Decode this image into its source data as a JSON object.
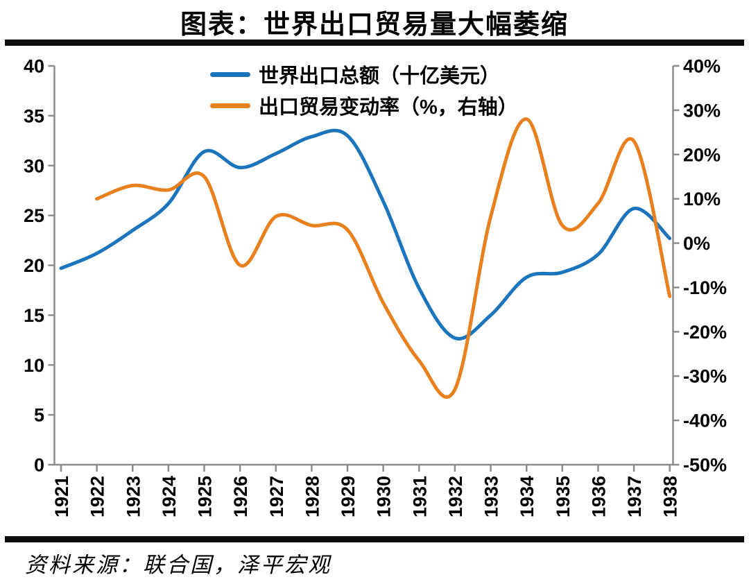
{
  "title": "图表：世界出口贸易量大幅萎缩",
  "source": "资料来源：联合国，泽平宏观",
  "colors": {
    "blue": "#1b75bc",
    "orange": "#e8801e",
    "axis": "#8c8c8c",
    "rule": "#0d0d0d",
    "text": "#000000"
  },
  "legend": [
    {
      "label": "世界出口总额（十亿美元）",
      "color_key": "blue"
    },
    {
      "label": "出口贸易变动率（%，右轴）",
      "color_key": "orange"
    }
  ],
  "chart_data": {
    "type": "line",
    "title": "图表：世界出口贸易量大幅萎缩",
    "x": [
      1921,
      1922,
      1923,
      1924,
      1925,
      1926,
      1927,
      1928,
      1929,
      1930,
      1931,
      1932,
      1933,
      1934,
      1935,
      1936,
      1937,
      1938
    ],
    "x_labels": [
      "1921",
      "1922",
      "1923",
      "1924",
      "1925",
      "1926",
      "1927",
      "1928",
      "1929",
      "1930",
      "1931",
      "1932",
      "1933",
      "1934",
      "1935",
      "1936",
      "1937",
      "1938"
    ],
    "series": [
      {
        "name": "世界出口总额（十亿美元）",
        "axis": "left",
        "color_key": "blue",
        "values": [
          19.7,
          21.2,
          23.5,
          26.2,
          31.4,
          29.8,
          31.2,
          32.9,
          33.0,
          26.4,
          17.7,
          12.7,
          15.0,
          18.8,
          19.3,
          21.1,
          25.7,
          22.7
        ]
      },
      {
        "name": "出口贸易变动率（%，右轴）",
        "axis": "right",
        "color_key": "orange",
        "values": [
          null,
          10,
          13,
          12,
          15,
          -5,
          6,
          4,
          3,
          -13.5,
          -26.5,
          -33,
          6,
          28,
          4,
          9,
          23,
          -12
        ]
      }
    ],
    "left_axis": {
      "min": 0,
      "max": 40,
      "step": 5,
      "tick_values": [
        0,
        5,
        10,
        15,
        20,
        25,
        30,
        35,
        40
      ],
      "tick_labels": [
        "0",
        "5",
        "10",
        "15",
        "20",
        "25",
        "30",
        "35",
        "40"
      ]
    },
    "right_axis": {
      "min": -50,
      "max": 40,
      "step": 10,
      "tick_values": [
        -50,
        -40,
        -30,
        -20,
        -10,
        0,
        10,
        20,
        30,
        40
      ],
      "tick_labels": [
        "-50%",
        "-40%",
        "-30%",
        "-20%",
        "-10%",
        "0%",
        "10%",
        "20%",
        "30%",
        "40%"
      ]
    },
    "grid": false,
    "legend_position": "top-center",
    "smoothing": true
  }
}
